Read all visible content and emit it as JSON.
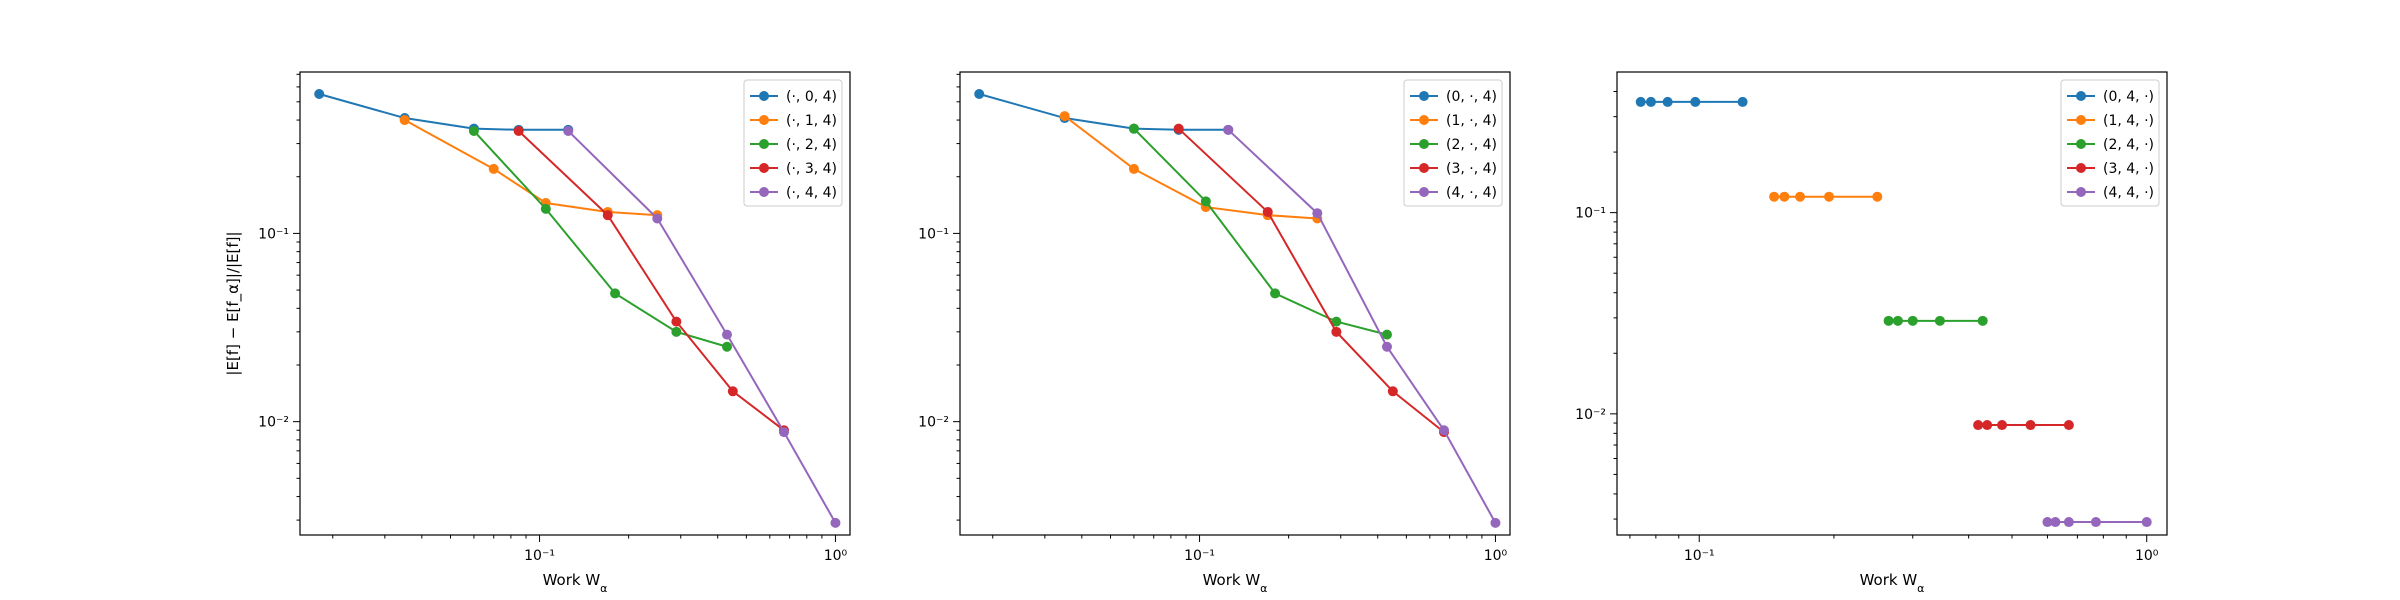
{
  "colors": [
    "#1f77b4",
    "#ff7f0e",
    "#2ca02c",
    "#d62728",
    "#9467bd"
  ],
  "chart_data": [
    {
      "type": "line",
      "xlabel": "Work W_α",
      "ylabel": "|E[f] − E[f_α]|/|E[f]|",
      "xscale": "log",
      "yscale": "log",
      "xlim": [
        0.0155,
        1.12
      ],
      "ylim": [
        0.0025,
        0.72
      ],
      "xticks": [
        {
          "v": 0.1,
          "label": "10⁻¹"
        },
        {
          "v": 1,
          "label": "10⁰"
        }
      ],
      "yticks": [
        {
          "v": 0.01,
          "label": "10⁻²"
        },
        {
          "v": 0.1,
          "label": "10⁻¹"
        }
      ],
      "legend": "top-right",
      "series": [
        {
          "name": "(·, 0, 4)",
          "x": [
            0.018,
            0.035,
            0.06,
            0.085,
            0.125
          ],
          "y": [
            0.55,
            0.41,
            0.36,
            0.355,
            0.355
          ]
        },
        {
          "name": "(·, 1, 4)",
          "x": [
            0.035,
            0.07,
            0.105,
            0.17,
            0.25
          ],
          "y": [
            0.4,
            0.22,
            0.145,
            0.13,
            0.125
          ]
        },
        {
          "name": "(·, 2, 4)",
          "x": [
            0.06,
            0.105,
            0.18,
            0.29,
            0.43
          ],
          "y": [
            0.35,
            0.135,
            0.048,
            0.03,
            0.025
          ]
        },
        {
          "name": "(·, 3, 4)",
          "x": [
            0.085,
            0.17,
            0.29,
            0.45,
            0.67
          ],
          "y": [
            0.35,
            0.125,
            0.034,
            0.0145,
            0.009
          ]
        },
        {
          "name": "(·, 4, 4)",
          "x": [
            0.125,
            0.25,
            0.43,
            0.67,
            1.0
          ],
          "y": [
            0.35,
            0.12,
            0.029,
            0.0088,
            0.0029
          ]
        }
      ]
    },
    {
      "type": "line",
      "xlabel": "Work W_α",
      "ylabel": "",
      "xscale": "log",
      "yscale": "log",
      "xlim": [
        0.0155,
        1.12
      ],
      "ylim": [
        0.0025,
        0.72
      ],
      "xticks": [
        {
          "v": 0.1,
          "label": "10⁻¹"
        },
        {
          "v": 1,
          "label": "10⁰"
        }
      ],
      "yticks": [
        {
          "v": 0.01,
          "label": "10⁻²"
        },
        {
          "v": 0.1,
          "label": "10⁻¹"
        }
      ],
      "legend": "top-right",
      "series": [
        {
          "name": "(0, ·, 4)",
          "x": [
            0.018,
            0.035,
            0.06,
            0.085,
            0.125
          ],
          "y": [
            0.55,
            0.41,
            0.36,
            0.355,
            0.355
          ]
        },
        {
          "name": "(1, ·, 4)",
          "x": [
            0.035,
            0.06,
            0.105,
            0.17,
            0.25
          ],
          "y": [
            0.42,
            0.22,
            0.138,
            0.125,
            0.12
          ]
        },
        {
          "name": "(2, ·, 4)",
          "x": [
            0.06,
            0.105,
            0.18,
            0.29,
            0.43
          ],
          "y": [
            0.36,
            0.148,
            0.048,
            0.034,
            0.029
          ]
        },
        {
          "name": "(3, ·, 4)",
          "x": [
            0.085,
            0.17,
            0.29,
            0.45,
            0.67
          ],
          "y": [
            0.36,
            0.13,
            0.03,
            0.0145,
            0.0088
          ]
        },
        {
          "name": "(4, ·, 4)",
          "x": [
            0.125,
            0.25,
            0.43,
            0.67,
            1.0
          ],
          "y": [
            0.355,
            0.128,
            0.025,
            0.009,
            0.0029
          ]
        }
      ]
    },
    {
      "type": "line",
      "xlabel": "Work W_α",
      "ylabel": "",
      "xscale": "log",
      "yscale": "log",
      "xlim": [
        0.0655,
        1.11
      ],
      "ylim": [
        0.0025,
        0.5
      ],
      "xticks": [
        {
          "v": 0.1,
          "label": "10⁻¹"
        },
        {
          "v": 1,
          "label": "10⁰"
        }
      ],
      "yticks": [
        {
          "v": 0.01,
          "label": "10⁻²"
        },
        {
          "v": 0.1,
          "label": "10⁻¹"
        }
      ],
      "legend": "top-right",
      "series": [
        {
          "name": "(0, 4, ·)",
          "x": [
            0.074,
            0.078,
            0.085,
            0.098,
            0.125
          ],
          "y": [
            0.355,
            0.355,
            0.355,
            0.355,
            0.355
          ]
        },
        {
          "name": "(1, 4, ·)",
          "x": [
            0.147,
            0.155,
            0.168,
            0.195,
            0.25
          ],
          "y": [
            0.12,
            0.12,
            0.12,
            0.12,
            0.12
          ]
        },
        {
          "name": "(2, 4, ·)",
          "x": [
            0.265,
            0.278,
            0.3,
            0.345,
            0.43
          ],
          "y": [
            0.029,
            0.029,
            0.029,
            0.029,
            0.029
          ]
        },
        {
          "name": "(3, 4, ·)",
          "x": [
            0.42,
            0.44,
            0.475,
            0.55,
            0.67
          ],
          "y": [
            0.0088,
            0.0088,
            0.0088,
            0.0088,
            0.0088
          ]
        },
        {
          "name": "(4, 4, ·)",
          "x": [
            0.6,
            0.625,
            0.67,
            0.77,
            1.0
          ],
          "y": [
            0.0029,
            0.0029,
            0.0029,
            0.0029,
            0.0029
          ]
        }
      ]
    }
  ]
}
